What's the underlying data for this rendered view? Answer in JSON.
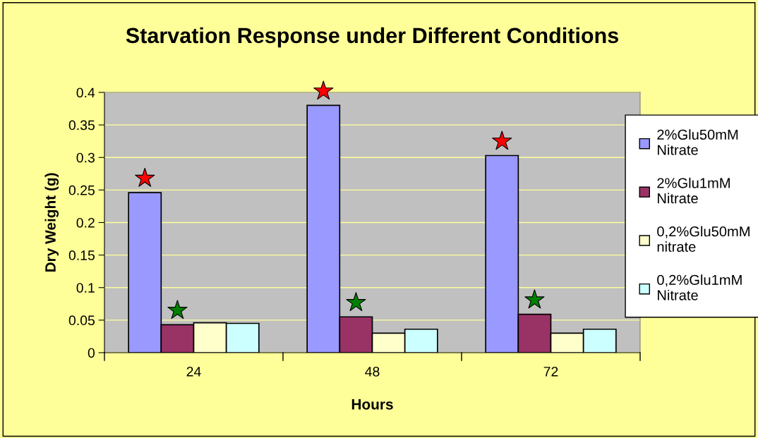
{
  "chart_data": {
    "type": "bar",
    "title": "Starvation Response under Different Conditions",
    "xlabel": "Hours",
    "ylabel": "Dry Weight (g)",
    "categories": [
      "24",
      "48",
      "72"
    ],
    "series": [
      {
        "name": "2%Glu50mM Nitrate",
        "color": "#9999ff",
        "values": [
          0.246,
          0.38,
          0.303
        ]
      },
      {
        "name": "2%Glu1mM Nitrate",
        "color": "#993366",
        "values": [
          0.043,
          0.055,
          0.059
        ]
      },
      {
        "name": "0,2%Glu50mM nitrate",
        "color": "#ffffcc",
        "values": [
          0.046,
          0.03,
          0.03
        ]
      },
      {
        "name": "0,2%Glu1mM Nitrate",
        "color": "#ccffff",
        "values": [
          0.045,
          0.036,
          0.036
        ]
      }
    ],
    "ylim": [
      0,
      0.4
    ],
    "yticks": [
      0,
      0.05,
      0.1,
      0.15,
      0.2,
      0.25,
      0.3,
      0.35,
      0.4
    ],
    "grid": "y",
    "legend": "right"
  }
}
